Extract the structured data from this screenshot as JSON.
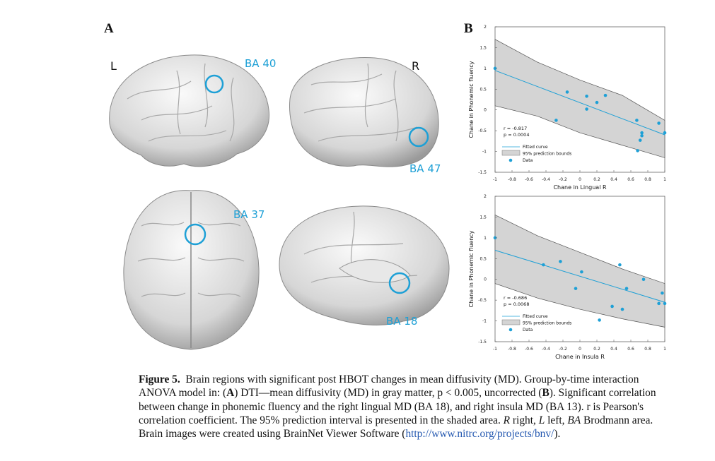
{
  "panel_a": {
    "letter": "A",
    "left_label": "L",
    "right_label": "R",
    "regions": [
      "BA 40",
      "BA 47",
      "BA 37",
      "BA 18"
    ]
  },
  "panel_b": {
    "letter": "B"
  },
  "colors": {
    "accent": "#1ea0d6",
    "band": "#d4d4d4",
    "text": "#111111"
  },
  "chart_data": [
    {
      "type": "scatter",
      "xlabel": "Chane in Lingual R",
      "ylabel": "Chane in Phonemic fluency",
      "xlim": [
        -1,
        1
      ],
      "ylim": [
        -1.5,
        2
      ],
      "xticks": [
        "-1",
        "-0.8",
        "-0.6",
        "-0.4",
        "-0.2",
        "0",
        "0.2",
        "0.4",
        "0.6",
        "0.8",
        "1"
      ],
      "yticks": [
        "-1.5",
        "-1",
        "-0.5",
        "0",
        "0.5",
        "1",
        "1.5",
        "2"
      ],
      "stats": [
        "r = -0.817",
        "p = 0.0004"
      ],
      "legend": [
        "Fitted curve",
        "95% prediction bounds",
        "Data"
      ],
      "fit": {
        "x": [
          -1,
          1
        ],
        "y": [
          0.95,
          -0.6
        ]
      },
      "band_upper": {
        "x": [
          -1,
          -0.5,
          0,
          0.5,
          1
        ],
        "y": [
          1.7,
          1.15,
          0.72,
          0.35,
          -0.25
        ]
      },
      "band_lower": {
        "x": [
          -1,
          -0.5,
          0,
          0.5,
          1
        ],
        "y": [
          0.1,
          -0.15,
          -0.55,
          -0.85,
          -1.15
        ]
      },
      "points": [
        [
          -1,
          1
        ],
        [
          -0.28,
          -0.25
        ],
        [
          -0.15,
          0.43
        ],
        [
          0.08,
          0.33
        ],
        [
          0.08,
          0.02
        ],
        [
          0.2,
          0.18
        ],
        [
          0.3,
          0.35
        ],
        [
          0.67,
          -0.25
        ],
        [
          0.68,
          -0.98
        ],
        [
          0.71,
          -0.73
        ],
        [
          0.73,
          -0.62
        ],
        [
          0.73,
          -0.55
        ],
        [
          0.93,
          -0.32
        ],
        [
          1,
          -0.55
        ]
      ]
    },
    {
      "type": "scatter",
      "xlabel": "Chane in Insula R",
      "ylabel": "Chane in Phonemic fluency",
      "xlim": [
        -1,
        1
      ],
      "ylim": [
        -1.5,
        2
      ],
      "xticks": [
        "-1",
        "-0.8",
        "-0.6",
        "-0.4",
        "-0.2",
        "0",
        "0.2",
        "0.4",
        "0.6",
        "0.8",
        "1"
      ],
      "yticks": [
        "-1.5",
        "-1",
        "-0.5",
        "0",
        "0.5",
        "1",
        "1.5",
        "2"
      ],
      "stats": [
        "r = -0.686",
        "p = 0.0068"
      ],
      "legend": [
        "Fitted curve",
        "95% prediction bounds",
        "Data"
      ],
      "fit": {
        "x": [
          -1,
          1
        ],
        "y": [
          0.7,
          -0.55
        ]
      },
      "band_upper": {
        "x": [
          -1,
          -0.5,
          0,
          0.5,
          1
        ],
        "y": [
          1.55,
          1.05,
          0.65,
          0.25,
          -0.1
        ]
      },
      "band_lower": {
        "x": [
          -1,
          -0.5,
          0,
          0.5,
          1
        ],
        "y": [
          -0.1,
          -0.45,
          -0.72,
          -0.95,
          -1.15
        ]
      },
      "points": [
        [
          -1,
          1
        ],
        [
          -0.43,
          0.35
        ],
        [
          -0.23,
          0.43
        ],
        [
          -0.05,
          -0.22
        ],
        [
          0.02,
          0.18
        ],
        [
          0.23,
          -0.98
        ],
        [
          0.38,
          -0.65
        ],
        [
          0.47,
          0.35
        ],
        [
          0.5,
          -0.72
        ],
        [
          0.55,
          -0.22
        ],
        [
          0.75,
          0
        ],
        [
          0.93,
          -0.58
        ],
        [
          0.97,
          -0.33
        ],
        [
          1,
          -0.58
        ]
      ]
    }
  ],
  "caption": {
    "fig": "Figure 5.",
    "p1": "Brain regions with significant post HBOT changes in mean diffusivity (MD). Group-by-time interaction ANOVA model in: (",
    "a": "A",
    "p2": ") DTI—mean diffusivity (MD) in gray matter, p < 0.005, uncorrected (",
    "b": "B",
    "p3": "). Significant correlation between change in phonemic fluency and the right lingual MD (BA 18), and right insula MD (BA 13). r is Pearson's correlation coefficient. The 95% prediction interval is presented in the shaded area. ",
    "r": "R",
    "p4": " right, ",
    "l": "L",
    "p5": " left, ",
    "ba": "BA",
    "p6": " Brodmann area. Brain images were created using BrainNet Viewer Software (",
    "url": "http://www.nitrc.org/projects/bnv/",
    "p7": ")."
  }
}
